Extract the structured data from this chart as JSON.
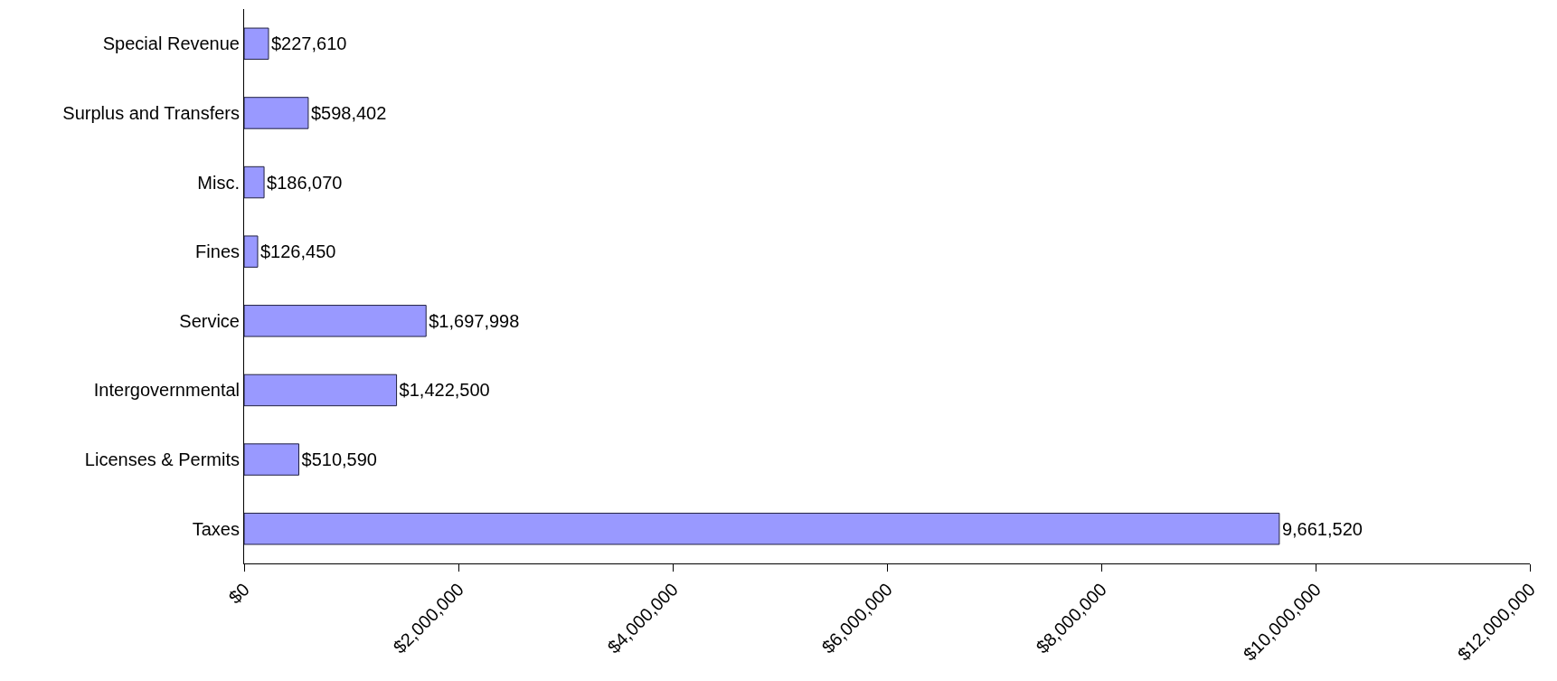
{
  "chart_data": {
    "type": "bar",
    "orientation": "horizontal",
    "categories": [
      "Special Revenue",
      "Surplus and Transfers",
      "Misc.",
      "Fines",
      "Service",
      "Intergovernmental",
      "Licenses & Permits",
      "Taxes"
    ],
    "values": [
      227610,
      598402,
      186070,
      126450,
      1697998,
      1422500,
      510590,
      9661520
    ],
    "value_labels": [
      "$227,610",
      "$598,402",
      "$186,070",
      "$126,450",
      "$1,697,998",
      "$1,422,500",
      "$510,590",
      "9,661,520"
    ],
    "color": "#9999ff",
    "xlim": [
      0,
      12000000
    ],
    "xticks": [
      {
        "value": 0,
        "label": "$0"
      },
      {
        "value": 2000000,
        "label": "$2,000,000"
      },
      {
        "value": 4000000,
        "label": "$4,000,000"
      },
      {
        "value": 6000000,
        "label": "$6,000,000"
      },
      {
        "value": 8000000,
        "label": "$8,000,000"
      },
      {
        "value": 10000000,
        "label": "$10,000,000"
      },
      {
        "value": 12000000,
        "label": "$12,000,000"
      }
    ],
    "grid": false
  }
}
